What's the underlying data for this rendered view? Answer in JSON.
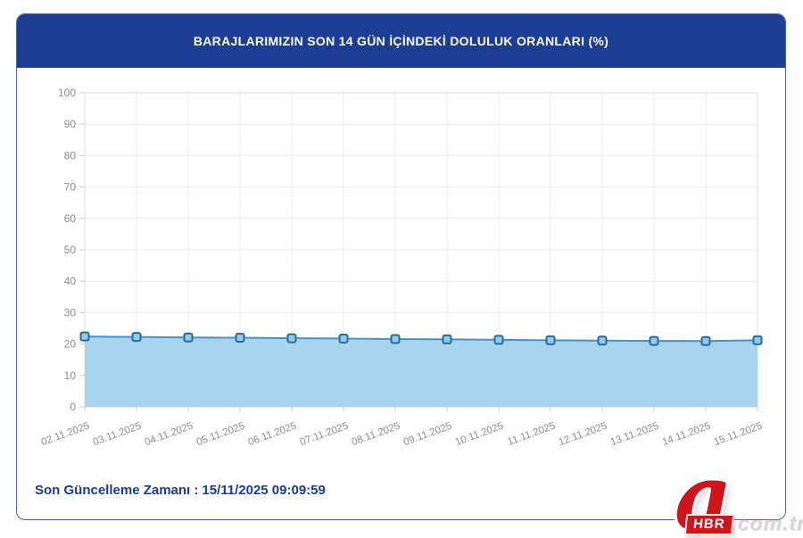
{
  "header": {
    "title": "BARAJLARIMIZIN SON 14 GÜN İÇİNDEKİ DOLULUK ORANLARI (%)",
    "bg_color": "#1c3e92"
  },
  "footer": {
    "last_update_label": "Son Güncelleme Zamanı :",
    "last_update_value": "15/11/2025 09:09:59"
  },
  "watermark": {
    "logo_letter": "a",
    "logo_box": "HBR",
    "logo_suffix": ".com.tr",
    "logo_color": "#d0151a"
  },
  "chart_data": {
    "type": "area",
    "title": "BARAJLARIMIZIN SON 14 GÜN İÇİNDEKİ DOLULUK ORANLARI (%)",
    "categories": [
      "02.11.2025",
      "03.11.2025",
      "04.11.2025",
      "05.11.2025",
      "06.11.2025",
      "07.11.2025",
      "08.11.2025",
      "09.11.2025",
      "10.11.2025",
      "11.11.2025",
      "12.11.2025",
      "13.11.2025",
      "14.11.2025",
      "15.11.2025"
    ],
    "values": [
      22.4,
      22.25,
      22.1,
      22.0,
      21.85,
      21.75,
      21.6,
      21.5,
      21.35,
      21.2,
      21.1,
      21.0,
      20.95,
      21.2
    ],
    "xlabel": "",
    "ylabel": "",
    "ylim": [
      0,
      100
    ],
    "ytick_step": 10,
    "grid": true,
    "legend": "none",
    "grid_color": "#ececec",
    "line_color": "#4193cb",
    "area_color": "#a9d4ed",
    "marker_fill": "#8fcbea",
    "marker_stroke": "#2a6a9b"
  }
}
